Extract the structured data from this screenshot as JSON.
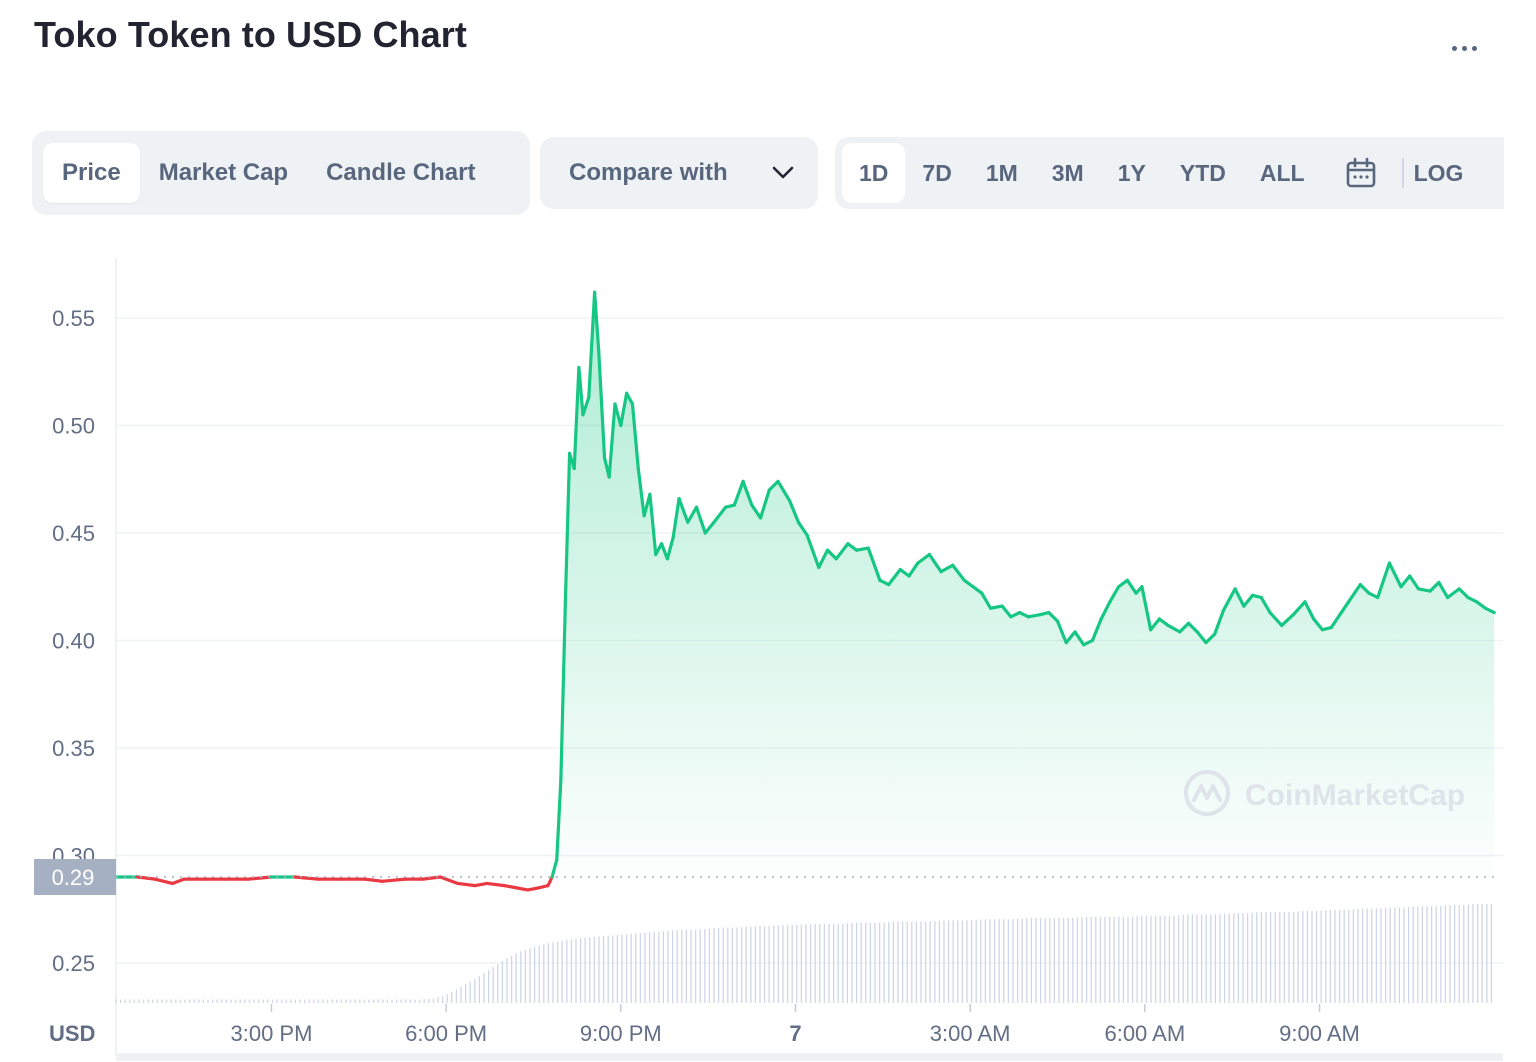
{
  "header": {
    "title": "Toko Token to USD Chart",
    "more_icon": "more-horizontal-icon"
  },
  "tabs": [
    {
      "label": "Price",
      "active": true
    },
    {
      "label": "Market Cap",
      "active": false
    },
    {
      "label": "Candle Chart",
      "active": false
    }
  ],
  "compare": {
    "label": "Compare with",
    "icon": "chevron-down-icon"
  },
  "ranges": [
    {
      "label": "1D",
      "active": true
    },
    {
      "label": "7D",
      "active": false
    },
    {
      "label": "1M",
      "active": false
    },
    {
      "label": "3M",
      "active": false
    },
    {
      "label": "1Y",
      "active": false
    },
    {
      "label": "YTD",
      "active": false
    },
    {
      "label": "ALL",
      "active": false
    }
  ],
  "calendar_icon": "calendar-icon",
  "log_label": "LOG",
  "watermark": "CoinMarketCap",
  "colors": {
    "up": "#16c784",
    "down": "#ea3943",
    "grid": "#eff2f5",
    "axis_text": "#616e85",
    "price_tag": "#a6b0c3"
  },
  "chart_data": {
    "type": "area",
    "ylabel": "USD",
    "ylim": [
      0.22,
      0.57
    ],
    "y_ticks": [
      "0.25",
      "0.30",
      "0.35",
      "0.40",
      "0.45",
      "0.50",
      "0.55"
    ],
    "x_ticks": [
      "3:00 PM",
      "6:00 PM",
      "9:00 PM",
      "7",
      "3:00 AM",
      "6:00 AM",
      "9:00 AM"
    ],
    "x_tick_hours": [
      15,
      18,
      21,
      24,
      27,
      30,
      33
    ],
    "xlim_hours": [
      12.33,
      36.1
    ],
    "reference_price": 0.29,
    "reference_label": "0.29",
    "series": [
      {
        "x_hours": [
          12.33,
          12.7,
          13.0,
          13.3,
          13.5,
          13.8,
          14.2,
          14.6,
          15.0,
          15.4,
          15.8,
          16.2,
          16.6,
          16.9,
          17.3,
          17.6,
          17.9,
          18.2,
          18.5,
          18.7,
          19.0,
          19.2,
          19.4,
          19.6,
          19.75,
          19.82,
          19.9,
          19.97,
          20.05,
          20.12,
          20.2,
          20.28,
          20.35,
          20.45,
          20.55,
          20.62,
          20.72,
          20.8,
          20.9,
          21.0,
          21.1,
          21.2,
          21.3,
          21.4,
          21.5,
          21.6,
          21.7,
          21.8,
          21.9,
          22.0,
          22.15,
          22.3,
          22.45,
          22.6,
          22.8,
          22.95,
          23.1,
          23.25,
          23.4,
          23.55,
          23.7,
          23.9,
          24.05,
          24.2,
          24.4,
          24.55,
          24.7,
          24.9,
          25.05,
          25.25,
          25.45,
          25.6,
          25.8,
          25.95,
          26.1,
          26.3,
          26.5,
          26.7,
          26.9,
          27.05,
          27.2,
          27.35,
          27.55,
          27.7,
          27.85,
          28.0,
          28.2,
          28.35,
          28.5,
          28.65,
          28.8,
          28.95,
          29.1,
          29.25,
          29.4,
          29.55,
          29.7,
          29.85,
          29.95,
          30.1,
          30.25,
          30.4,
          30.6,
          30.75,
          30.9,
          31.05,
          31.2,
          31.35,
          31.55,
          31.7,
          31.85,
          32.0,
          32.15,
          32.35,
          32.55,
          32.75,
          32.9,
          33.05,
          33.2,
          33.35,
          33.5,
          33.7,
          33.85,
          34.0,
          34.2,
          34.4,
          34.55,
          34.7,
          34.9,
          35.05,
          35.2,
          35.4,
          35.55,
          35.7,
          35.85,
          36.0
        ],
        "values": [
          0.29,
          0.29,
          0.289,
          0.287,
          0.289,
          0.289,
          0.289,
          0.289,
          0.29,
          0.29,
          0.289,
          0.289,
          0.289,
          0.288,
          0.289,
          0.289,
          0.29,
          0.287,
          0.286,
          0.287,
          0.286,
          0.285,
          0.284,
          0.285,
          0.286,
          0.29,
          0.298,
          0.335,
          0.42,
          0.487,
          0.48,
          0.527,
          0.505,
          0.513,
          0.562,
          0.535,
          0.485,
          0.476,
          0.51,
          0.5,
          0.515,
          0.51,
          0.48,
          0.458,
          0.468,
          0.44,
          0.445,
          0.438,
          0.448,
          0.466,
          0.455,
          0.462,
          0.45,
          0.455,
          0.462,
          0.463,
          0.474,
          0.463,
          0.457,
          0.47,
          0.474,
          0.465,
          0.455,
          0.449,
          0.434,
          0.442,
          0.438,
          0.445,
          0.442,
          0.443,
          0.428,
          0.426,
          0.433,
          0.43,
          0.436,
          0.44,
          0.432,
          0.435,
          0.428,
          0.425,
          0.422,
          0.415,
          0.416,
          0.411,
          0.413,
          0.411,
          0.412,
          0.413,
          0.409,
          0.399,
          0.404,
          0.398,
          0.4,
          0.41,
          0.418,
          0.425,
          0.428,
          0.422,
          0.425,
          0.405,
          0.41,
          0.407,
          0.404,
          0.408,
          0.404,
          0.399,
          0.403,
          0.414,
          0.424,
          0.416,
          0.421,
          0.42,
          0.413,
          0.407,
          0.412,
          0.418,
          0.41,
          0.405,
          0.406,
          0.412,
          0.418,
          0.426,
          0.422,
          0.42,
          0.436,
          0.425,
          0.43,
          0.424,
          0.423,
          0.427,
          0.42,
          0.424,
          0.42,
          0.418,
          0.415,
          0.413
        ]
      }
    ],
    "volume_normalized": [
      0.03,
      0.03,
      0.03,
      0.03,
      0.03,
      0.03,
      0.03,
      0.03,
      0.03,
      0.03,
      0.03,
      0.03,
      0.03,
      0.03,
      0.03,
      0.03,
      0.03,
      0.03,
      0.03,
      0.03,
      0.03,
      0.03,
      0.04,
      0.08,
      0.15,
      0.22,
      0.3,
      0.38,
      0.44,
      0.48,
      0.51,
      0.53,
      0.55,
      0.56,
      0.57,
      0.58,
      0.59,
      0.6,
      0.61,
      0.62,
      0.62,
      0.63,
      0.64,
      0.64,
      0.65,
      0.65,
      0.66,
      0.66,
      0.67,
      0.67,
      0.67,
      0.68,
      0.68,
      0.68,
      0.69,
      0.69,
      0.69,
      0.7,
      0.7,
      0.7,
      0.71,
      0.71,
      0.71,
      0.72,
      0.72,
      0.72,
      0.72,
      0.73,
      0.73,
      0.73,
      0.73,
      0.74,
      0.74,
      0.74,
      0.75,
      0.75,
      0.75,
      0.76,
      0.76,
      0.77,
      0.77,
      0.77,
      0.78,
      0.78,
      0.79,
      0.79,
      0.8,
      0.8,
      0.81,
      0.81,
      0.82,
      0.82,
      0.83,
      0.83,
      0.84,
      0.84
    ]
  }
}
